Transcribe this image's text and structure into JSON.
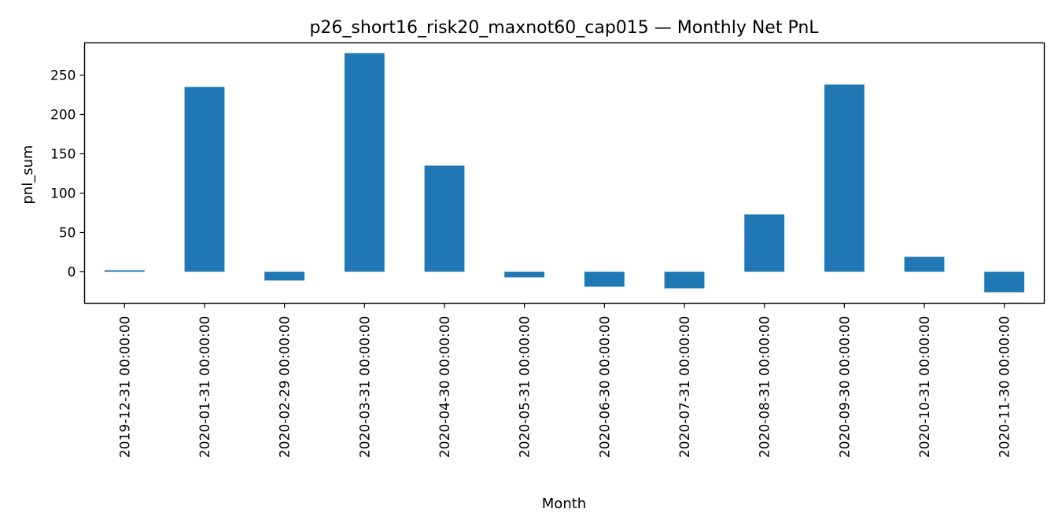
{
  "chart_data": {
    "type": "bar",
    "title": "p26_short16_risk20_maxnot60_cap015 — Monthly Net PnL",
    "xlabel": "Month",
    "ylabel": "pnl_sum",
    "categories": [
      "2019-12-31 00:00:00",
      "2020-01-31 00:00:00",
      "2020-02-29 00:00:00",
      "2020-03-31 00:00:00",
      "2020-04-30 00:00:00",
      "2020-05-31 00:00:00",
      "2020-06-30 00:00:00",
      "2020-07-31 00:00:00",
      "2020-08-31 00:00:00",
      "2020-09-30 00:00:00",
      "2020-10-31 00:00:00",
      "2020-11-30 00:00:00"
    ],
    "values": [
      2,
      235,
      -11,
      278,
      135,
      -7,
      -19,
      -21,
      73,
      238,
      19,
      -26
    ],
    "ylim": [
      -40,
      291
    ],
    "yticks": [
      0,
      50,
      100,
      150,
      200,
      250
    ],
    "bar_color": "#1f77b4",
    "grid": false,
    "legend": "none"
  }
}
